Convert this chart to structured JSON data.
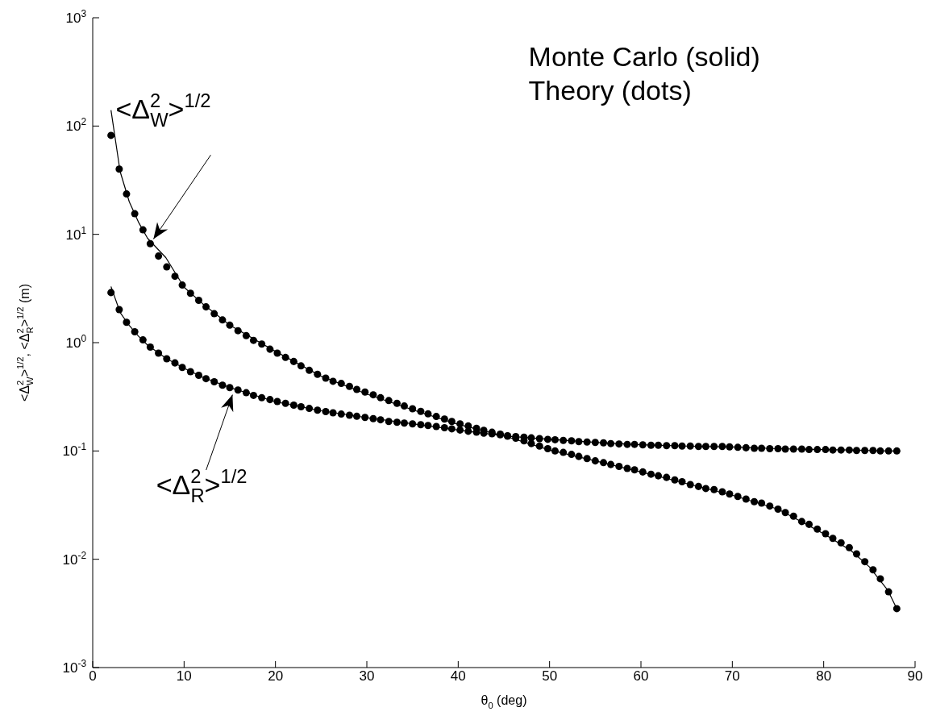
{
  "chart_data": {
    "type": "line",
    "xlabel": "θ$_{0}$ (deg)",
    "ylabel": "<Δ$^{2}$$_{W}$>$^{1/2}$, <Δ$^{2}$$_{R}$>$^{1/2}$ (m)",
    "log": "y",
    "xlim": [
      0,
      90
    ],
    "xticks": [
      0,
      10,
      20,
      30,
      40,
      50,
      60,
      70,
      80,
      90
    ],
    "ylim": [
      0.001,
      1000
    ],
    "yticks": [
      {
        "value": 0.001,
        "label": "10$^{-3}$"
      },
      {
        "value": 0.01,
        "label": "10$^{-2}$"
      },
      {
        "value": 0.1,
        "label": "10$^{-1}$"
      },
      {
        "value": 1,
        "label": "10$^{0}$"
      },
      {
        "value": 10,
        "label": "10$^{1}$"
      },
      {
        "value": 100,
        "label": "10$^{2}$"
      },
      {
        "value": 1000,
        "label": "10$^{3}$"
      }
    ],
    "annotations": [
      "Monte Carlo (solid)",
      "Theory (dots)",
      {
        "text": "<Δ$^{2}$$_{W}$>$^{1/2}$",
        "x": 6.3,
        "y": 8.2
      },
      {
        "text": "<Δ$^{2}$$_{R}$>$^{1/2}$",
        "x": 15.5,
        "y": 0.37
      }
    ],
    "series": [
      {
        "type": "line",
        "marker": "none",
        "color": "#000000",
        "x": [
          2,
          3,
          4,
          5,
          6,
          8,
          10,
          12,
          15,
          20,
          25,
          30,
          35,
          40,
          45,
          50,
          55,
          60,
          65,
          70,
          75,
          80,
          83,
          85,
          87,
          88
        ],
        "values": [
          140,
          38,
          20,
          13,
          9.2,
          6.1,
          3.25,
          2.3,
          1.45,
          0.83,
          0.49,
          0.335,
          0.24,
          0.176,
          0.138,
          0.102,
          0.081,
          0.064,
          0.05,
          0.039,
          0.029,
          0.0172,
          0.012,
          0.0085,
          0.0052,
          0.0035
        ]
      },
      {
        "type": "line",
        "marker": "none",
        "color": "#000000",
        "x": [
          2,
          3,
          4,
          5,
          6,
          8,
          10,
          12,
          15,
          20,
          25,
          30,
          35,
          40,
          45,
          50,
          55,
          60,
          65,
          70,
          75,
          80,
          83,
          85,
          87,
          88
        ],
        "values": [
          3.3,
          1.9,
          1.44,
          1.15,
          0.95,
          0.72,
          0.58,
          0.48,
          0.385,
          0.285,
          0.235,
          0.203,
          0.178,
          0.156,
          0.138,
          0.128,
          0.12,
          0.114,
          0.111,
          0.109,
          0.105,
          0.103,
          0.102,
          0.101,
          0.1,
          0.1
        ]
      },
      {
        "type": "scatter",
        "marker": "circle",
        "color": "#000000",
        "x": [
          2.0,
          2.9,
          3.7,
          4.6,
          5.5,
          6.3,
          7.2,
          8.1,
          9.0,
          9.8,
          10.7,
          11.6,
          12.4,
          13.3,
          14.2,
          15.0,
          15.9,
          16.8,
          17.6,
          18.5,
          19.4,
          20.2,
          21.1,
          22.0,
          22.8,
          23.7,
          24.6,
          25.5,
          26.3,
          27.2,
          28.1,
          28.9,
          29.8,
          30.7,
          31.5,
          32.4,
          33.3,
          34.1,
          35.0,
          35.9,
          36.7,
          37.6,
          38.5,
          39.3,
          40.2,
          41.1,
          42.0,
          42.8,
          43.7,
          44.6,
          45.4,
          46.3,
          47.2,
          48.0,
          48.9,
          49.8,
          50.6,
          51.5,
          52.4,
          53.2,
          54.1,
          55.0,
          55.9,
          56.7,
          57.6,
          58.5,
          59.3,
          60.2,
          61.1,
          61.9,
          62.8,
          63.7,
          64.5,
          65.4,
          66.3,
          67.1,
          68.0,
          68.9,
          69.7,
          70.6,
          71.5,
          72.4,
          73.2,
          74.1,
          75.0,
          75.8,
          76.7,
          77.6,
          78.4,
          79.3,
          80.2,
          81.0,
          81.9,
          82.8,
          83.6,
          84.5,
          85.4,
          86.2,
          87.1,
          88.0
        ],
        "values": [
          82,
          40,
          23.6,
          15.5,
          11,
          8.2,
          6.3,
          5.0,
          4.1,
          3.4,
          2.86,
          2.46,
          2.14,
          1.85,
          1.62,
          1.45,
          1.29,
          1.16,
          1.05,
          0.97,
          0.87,
          0.8,
          0.73,
          0.67,
          0.61,
          0.555,
          0.51,
          0.47,
          0.44,
          0.42,
          0.395,
          0.37,
          0.35,
          0.33,
          0.31,
          0.292,
          0.275,
          0.26,
          0.245,
          0.232,
          0.22,
          0.208,
          0.197,
          0.187,
          0.178,
          0.17,
          0.162,
          0.155,
          0.149,
          0.143,
          0.137,
          0.131,
          0.124,
          0.117,
          0.111,
          0.105,
          0.1,
          0.097,
          0.093,
          0.089,
          0.085,
          0.081,
          0.078,
          0.075,
          0.072,
          0.069,
          0.067,
          0.064,
          0.061,
          0.059,
          0.057,
          0.054,
          0.052,
          0.049,
          0.047,
          0.045,
          0.044,
          0.042,
          0.04,
          0.038,
          0.036,
          0.034,
          0.033,
          0.031,
          0.029,
          0.027,
          0.025,
          0.0223,
          0.021,
          0.019,
          0.0172,
          0.0156,
          0.0142,
          0.0128,
          0.0112,
          0.0095,
          0.008,
          0.0066,
          0.005,
          0.0035
        ]
      },
      {
        "type": "scatter",
        "marker": "circle",
        "color": "#000000",
        "x": [
          2.0,
          2.9,
          3.7,
          4.6,
          5.5,
          6.3,
          7.2,
          8.1,
          9.0,
          9.8,
          10.7,
          11.6,
          12.4,
          13.3,
          14.2,
          15.0,
          15.9,
          16.8,
          17.6,
          18.5,
          19.4,
          20.2,
          21.1,
          22.0,
          22.8,
          23.7,
          24.6,
          25.5,
          26.3,
          27.2,
          28.1,
          28.9,
          29.8,
          30.7,
          31.5,
          32.4,
          33.3,
          34.1,
          35.0,
          35.9,
          36.7,
          37.6,
          38.5,
          39.3,
          40.2,
          41.1,
          42.0,
          42.8,
          43.7,
          44.6,
          45.4,
          46.3,
          47.2,
          48.0,
          48.9,
          49.8,
          50.6,
          51.5,
          52.4,
          53.2,
          54.1,
          55.0,
          55.9,
          56.7,
          57.6,
          58.5,
          59.3,
          60.2,
          61.1,
          61.9,
          62.8,
          63.7,
          64.5,
          65.4,
          66.3,
          67.1,
          68.0,
          68.9,
          69.7,
          70.6,
          71.5,
          72.4,
          73.2,
          74.1,
          75.0,
          75.8,
          76.7,
          77.6,
          78.4,
          79.3,
          80.2,
          81.0,
          81.9,
          82.8,
          83.6,
          84.5,
          85.4,
          86.2,
          87.1,
          88.0
        ],
        "values": [
          2.9,
          2.02,
          1.54,
          1.26,
          1.06,
          0.91,
          0.8,
          0.71,
          0.65,
          0.59,
          0.54,
          0.5,
          0.465,
          0.435,
          0.405,
          0.385,
          0.365,
          0.345,
          0.326,
          0.31,
          0.298,
          0.286,
          0.275,
          0.265,
          0.256,
          0.247,
          0.238,
          0.231,
          0.225,
          0.219,
          0.214,
          0.209,
          0.204,
          0.199,
          0.194,
          0.187,
          0.184,
          0.181,
          0.178,
          0.175,
          0.172,
          0.168,
          0.164,
          0.16,
          0.156,
          0.152,
          0.149,
          0.146,
          0.144,
          0.141,
          0.138,
          0.136,
          0.134,
          0.132,
          0.13,
          0.128,
          0.127,
          0.125,
          0.124,
          0.122,
          0.121,
          0.12,
          0.119,
          0.117,
          0.116,
          0.115,
          0.115,
          0.114,
          0.113,
          0.113,
          0.112,
          0.112,
          0.111,
          0.111,
          0.11,
          0.11,
          0.11,
          0.11,
          0.109,
          0.108,
          0.107,
          0.106,
          0.106,
          0.105,
          0.105,
          0.104,
          0.104,
          0.104,
          0.103,
          0.103,
          0.103,
          0.102,
          0.102,
          0.102,
          0.101,
          0.101,
          0.101,
          0.1,
          0.1,
          0.1
        ]
      }
    ]
  }
}
